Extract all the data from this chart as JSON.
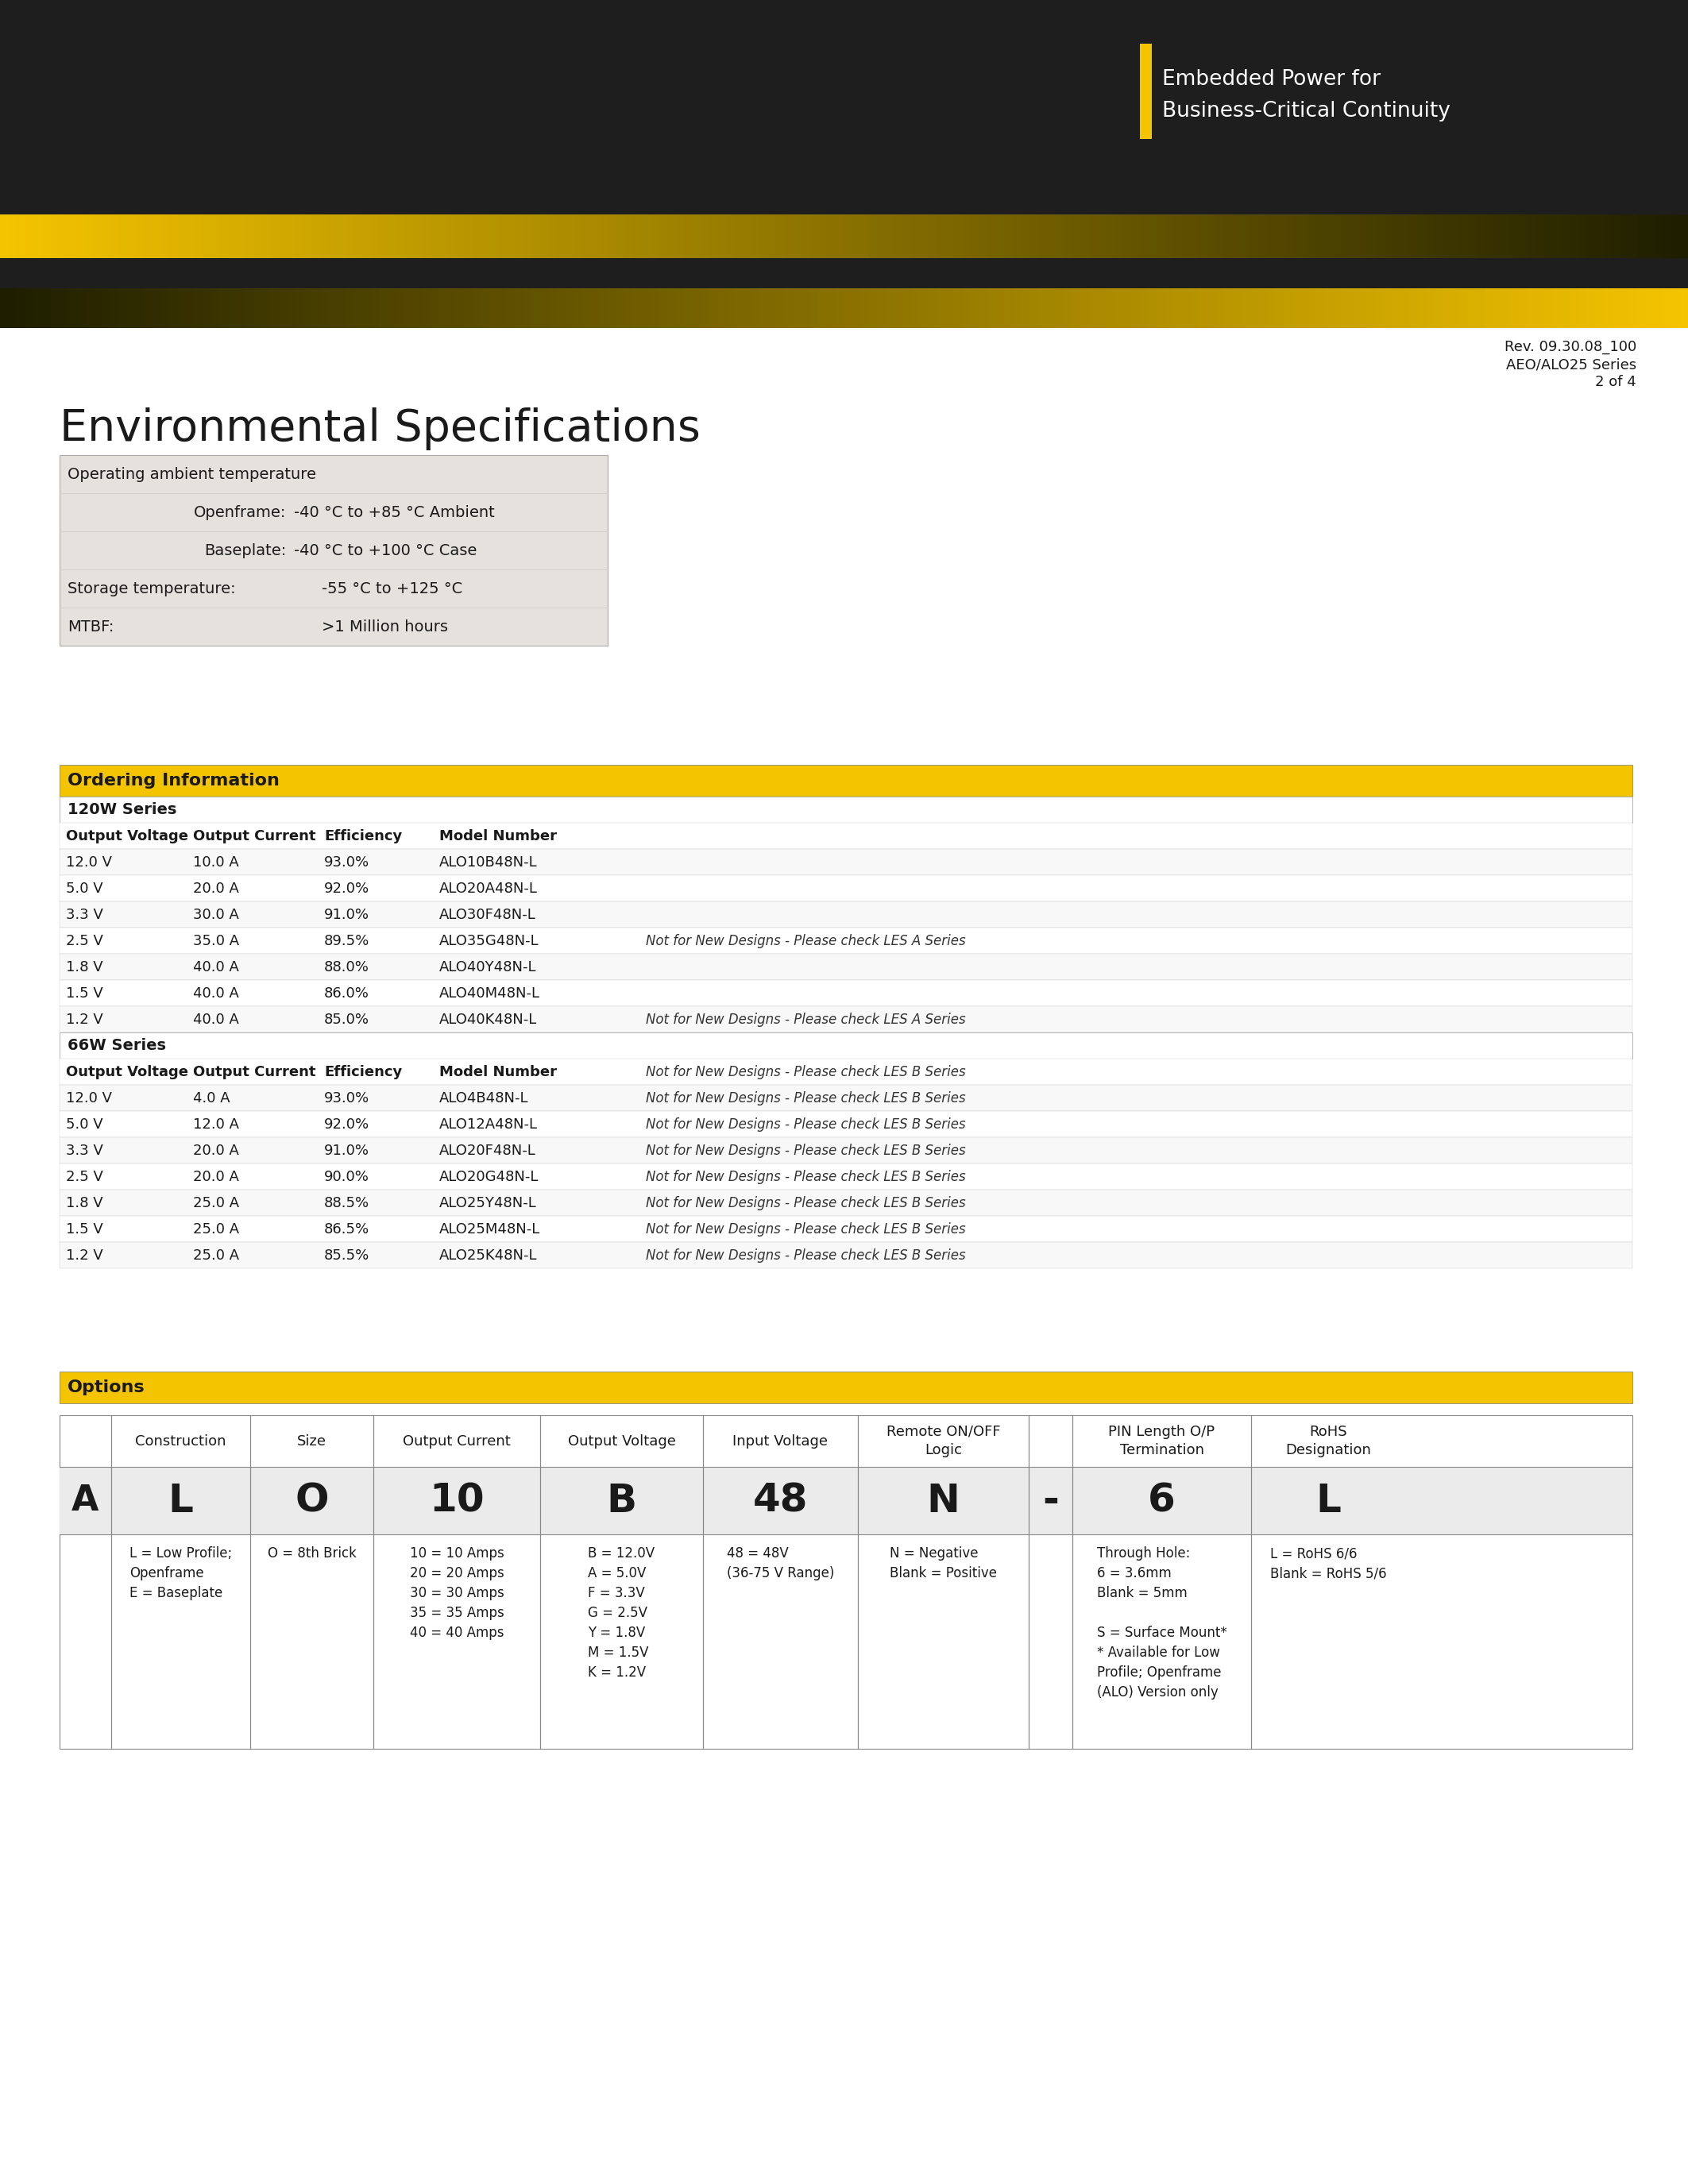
{
  "page_bg": "#ffffff",
  "header_dark_color": "#1e1e1e",
  "header_yellow_color": "#f5c400",
  "env_table_bg": "#e5e2dd",
  "ordering_header_bg": "#f5c400",
  "options_header_bg": "#f5c400",
  "col_headers": [
    "Output Voltage",
    "Output Current",
    "Efficiency",
    "Model Number"
  ],
  "rows_120w": [
    [
      "12.0 V",
      "10.0 A",
      "93.0%",
      "ALO10B48N-L",
      ""
    ],
    [
      "5.0 V",
      "20.0 A",
      "92.0%",
      "ALO20A48N-L",
      ""
    ],
    [
      "3.3 V",
      "30.0 A",
      "91.0%",
      "ALO30F48N-L",
      ""
    ],
    [
      "2.5 V",
      "35.0 A",
      "89.5%",
      "ALO35G48N-L",
      "Not for New Designs - Please check LES A Series"
    ],
    [
      "1.8 V",
      "40.0 A",
      "88.0%",
      "ALO40Y48N-L",
      ""
    ],
    [
      "1.5 V",
      "40.0 A",
      "86.0%",
      "ALO40M48N-L",
      ""
    ],
    [
      "1.2 V",
      "40.0 A",
      "85.0%",
      "ALO40K48N-L",
      "Not for New Designs - Please check LES A Series"
    ]
  ],
  "rows_66w": [
    [
      "12.0 V",
      "4.0 A",
      "93.0%",
      "ALO4B48N-L",
      "Not for New Designs - Please check LES B Series"
    ],
    [
      "5.0 V",
      "12.0 A",
      "92.0%",
      "ALO12A48N-L",
      "Not for New Designs - Please check LES B Series"
    ],
    [
      "3.3 V",
      "20.0 A",
      "91.0%",
      "ALO20F48N-L",
      "Not for New Designs - Please check LES B Series"
    ],
    [
      "2.5 V",
      "20.0 A",
      "90.0%",
      "ALO20G48N-L",
      "Not for New Designs - Please check LES B Series"
    ],
    [
      "1.8 V",
      "25.0 A",
      "88.5%",
      "ALO25Y48N-L",
      "Not for New Designs - Please check LES B Series"
    ],
    [
      "1.5 V",
      "25.0 A",
      "86.5%",
      "ALO25M48N-L",
      "Not for New Designs - Please check LES B Series"
    ],
    [
      "1.2 V",
      "25.0 A",
      "85.5%",
      "ALO25K48N-L",
      "Not for New Designs - Please check LES B Series"
    ]
  ],
  "opt_col_headers": [
    "",
    "Construction",
    "Size",
    "Output Current",
    "Output Voltage",
    "Input Voltage",
    "Remote ON/OFF\nLogic",
    "",
    "PIN Length O/P\nTermination",
    "RoHS\nDesignation"
  ],
  "opt_row_A": [
    "A",
    "L",
    "O",
    "10",
    "B",
    "48",
    "N",
    "-",
    "6",
    "L"
  ],
  "opt_desc": [
    "",
    "L = Low Profile;\nOpenframe\nE = Baseplate",
    "O = 8th Brick",
    "10 = 10 Amps\n20 = 20 Amps\n30 = 30 Amps\n35 = 35 Amps\n40 = 40 Amps",
    "B = 12.0V\nA = 5.0V\nF = 3.3V\nG = 2.5V\nY = 1.8V\nM = 1.5V\nK = 1.2V",
    "48 = 48V\n(36-75 V Range)",
    "N = Negative\nBlank = Positive",
    "",
    "Through Hole:\n6 = 3.6mm\nBlank = 5mm\n\nS = Surface Mount*\n* Available for Low\nProfile; Openframe\n(ALO) Version only",
    "L = RoHS 6/6\nBlank = RoHS 5/6"
  ],
  "opt_col_widths": [
    65,
    175,
    155,
    210,
    205,
    195,
    215,
    55,
    225,
    195
  ]
}
